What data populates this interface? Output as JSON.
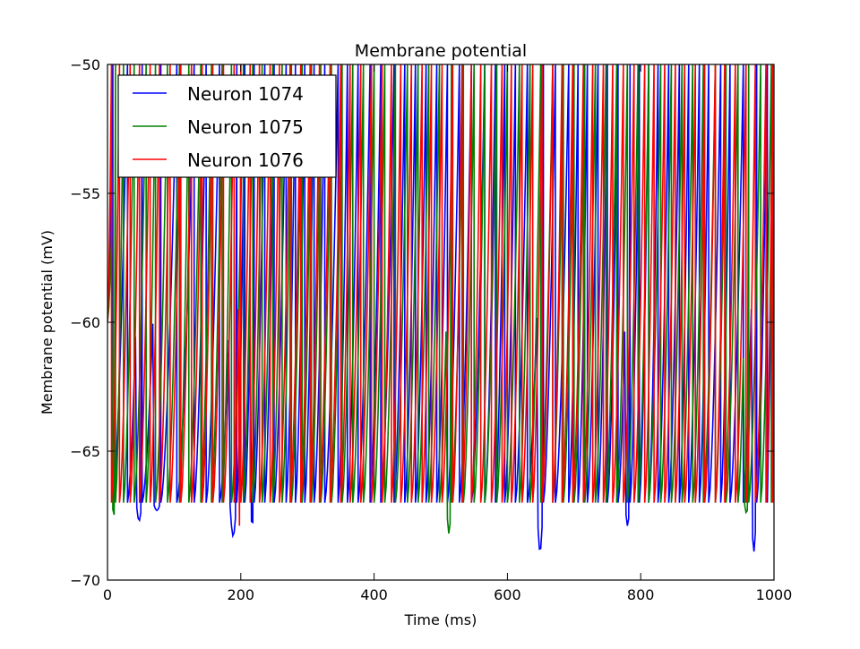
{
  "chart_data": {
    "type": "line",
    "title": "Membrane potential",
    "xlabel": "Time (ms)",
    "ylabel": "Membrane potential (mV)",
    "xlim": [
      0,
      1000
    ],
    "ylim": [
      -70,
      -50
    ],
    "xticks": [
      0,
      200,
      400,
      600,
      800,
      1000
    ],
    "yticks": [
      -70,
      -65,
      -60,
      -55,
      -50
    ],
    "xtick_labels": [
      "0",
      "200",
      "400",
      "600",
      "800",
      "1000"
    ],
    "ytick_labels": [
      "−70",
      "−65",
      "−60",
      "−55",
      "−50"
    ],
    "grid": false,
    "legend_position": "top-left",
    "reset_potential": -67,
    "threshold": -50,
    "series": [
      {
        "name": "Neuron 1074",
        "color": "#0000ff",
        "spike_times_ms": [
          8,
          30,
          52,
          80,
          104,
          130,
          148,
          168,
          194,
          206,
          220,
          236,
          250,
          268,
          282,
          296,
          310,
          326,
          346,
          360,
          376,
          394,
          410,
          430,
          446,
          462,
          478,
          494,
          510,
          528,
          546,
          566,
          582,
          596,
          612,
          630,
          654,
          672,
          692,
          706,
          720,
          736,
          750,
          766,
          784,
          798,
          812,
          826,
          842,
          858,
          872,
          888,
          902,
          920,
          934,
          954,
          974,
          990
        ],
        "dips": [
          {
            "t": 52,
            "v": -67.7
          },
          {
            "t": 80,
            "v": -67.3
          },
          {
            "t": 194,
            "v": -68.3
          },
          {
            "t": 220,
            "v": -67.9
          },
          {
            "t": 654,
            "v": -68.9
          },
          {
            "t": 784,
            "v": -67.9
          },
          {
            "t": 974,
            "v": -68.9
          },
          {
            "t": 640,
            "v": -67.7
          }
        ]
      },
      {
        "name": "Neuron 1075",
        "color": "#008000",
        "spike_times_ms": [
          12,
          24,
          40,
          58,
          72,
          90,
          108,
          122,
          140,
          156,
          172,
          186,
          204,
          218,
          232,
          248,
          262,
          276,
          292,
          306,
          320,
          336,
          352,
          368,
          384,
          400,
          416,
          432,
          450,
          466,
          482,
          498,
          516,
          534,
          550,
          566,
          584,
          600,
          618,
          634,
          650,
          668,
          684,
          700,
          716,
          732,
          748,
          764,
          780,
          796,
          812,
          830,
          846,
          862,
          878,
          894,
          912,
          928,
          946,
          962,
          980,
          996
        ],
        "dips": [
          {
            "t": 12,
            "v": -67.5
          },
          {
            "t": 516,
            "v": -68.2
          },
          {
            "t": 962,
            "v": -67.4
          }
        ]
      },
      {
        "name": "Neuron 1076",
        "color": "#ff0000",
        "spike_times_ms": [
          6,
          18,
          34,
          48,
          64,
          78,
          94,
          110,
          126,
          142,
          158,
          174,
          190,
          200,
          214,
          228,
          244,
          258,
          274,
          290,
          304,
          318,
          334,
          350,
          364,
          380,
          396,
          412,
          426,
          440,
          456,
          472,
          486,
          502,
          518,
          532,
          546,
          560,
          576,
          592,
          606,
          622,
          638,
          652,
          668,
          682,
          698,
          714,
          728,
          744,
          758,
          774,
          790,
          806,
          820,
          836,
          852,
          866,
          882,
          896,
          912,
          926,
          942,
          958,
          972,
          988,
          998
        ],
        "dips": [
          {
            "t": 200,
            "v": -67.9
          }
        ]
      }
    ]
  }
}
